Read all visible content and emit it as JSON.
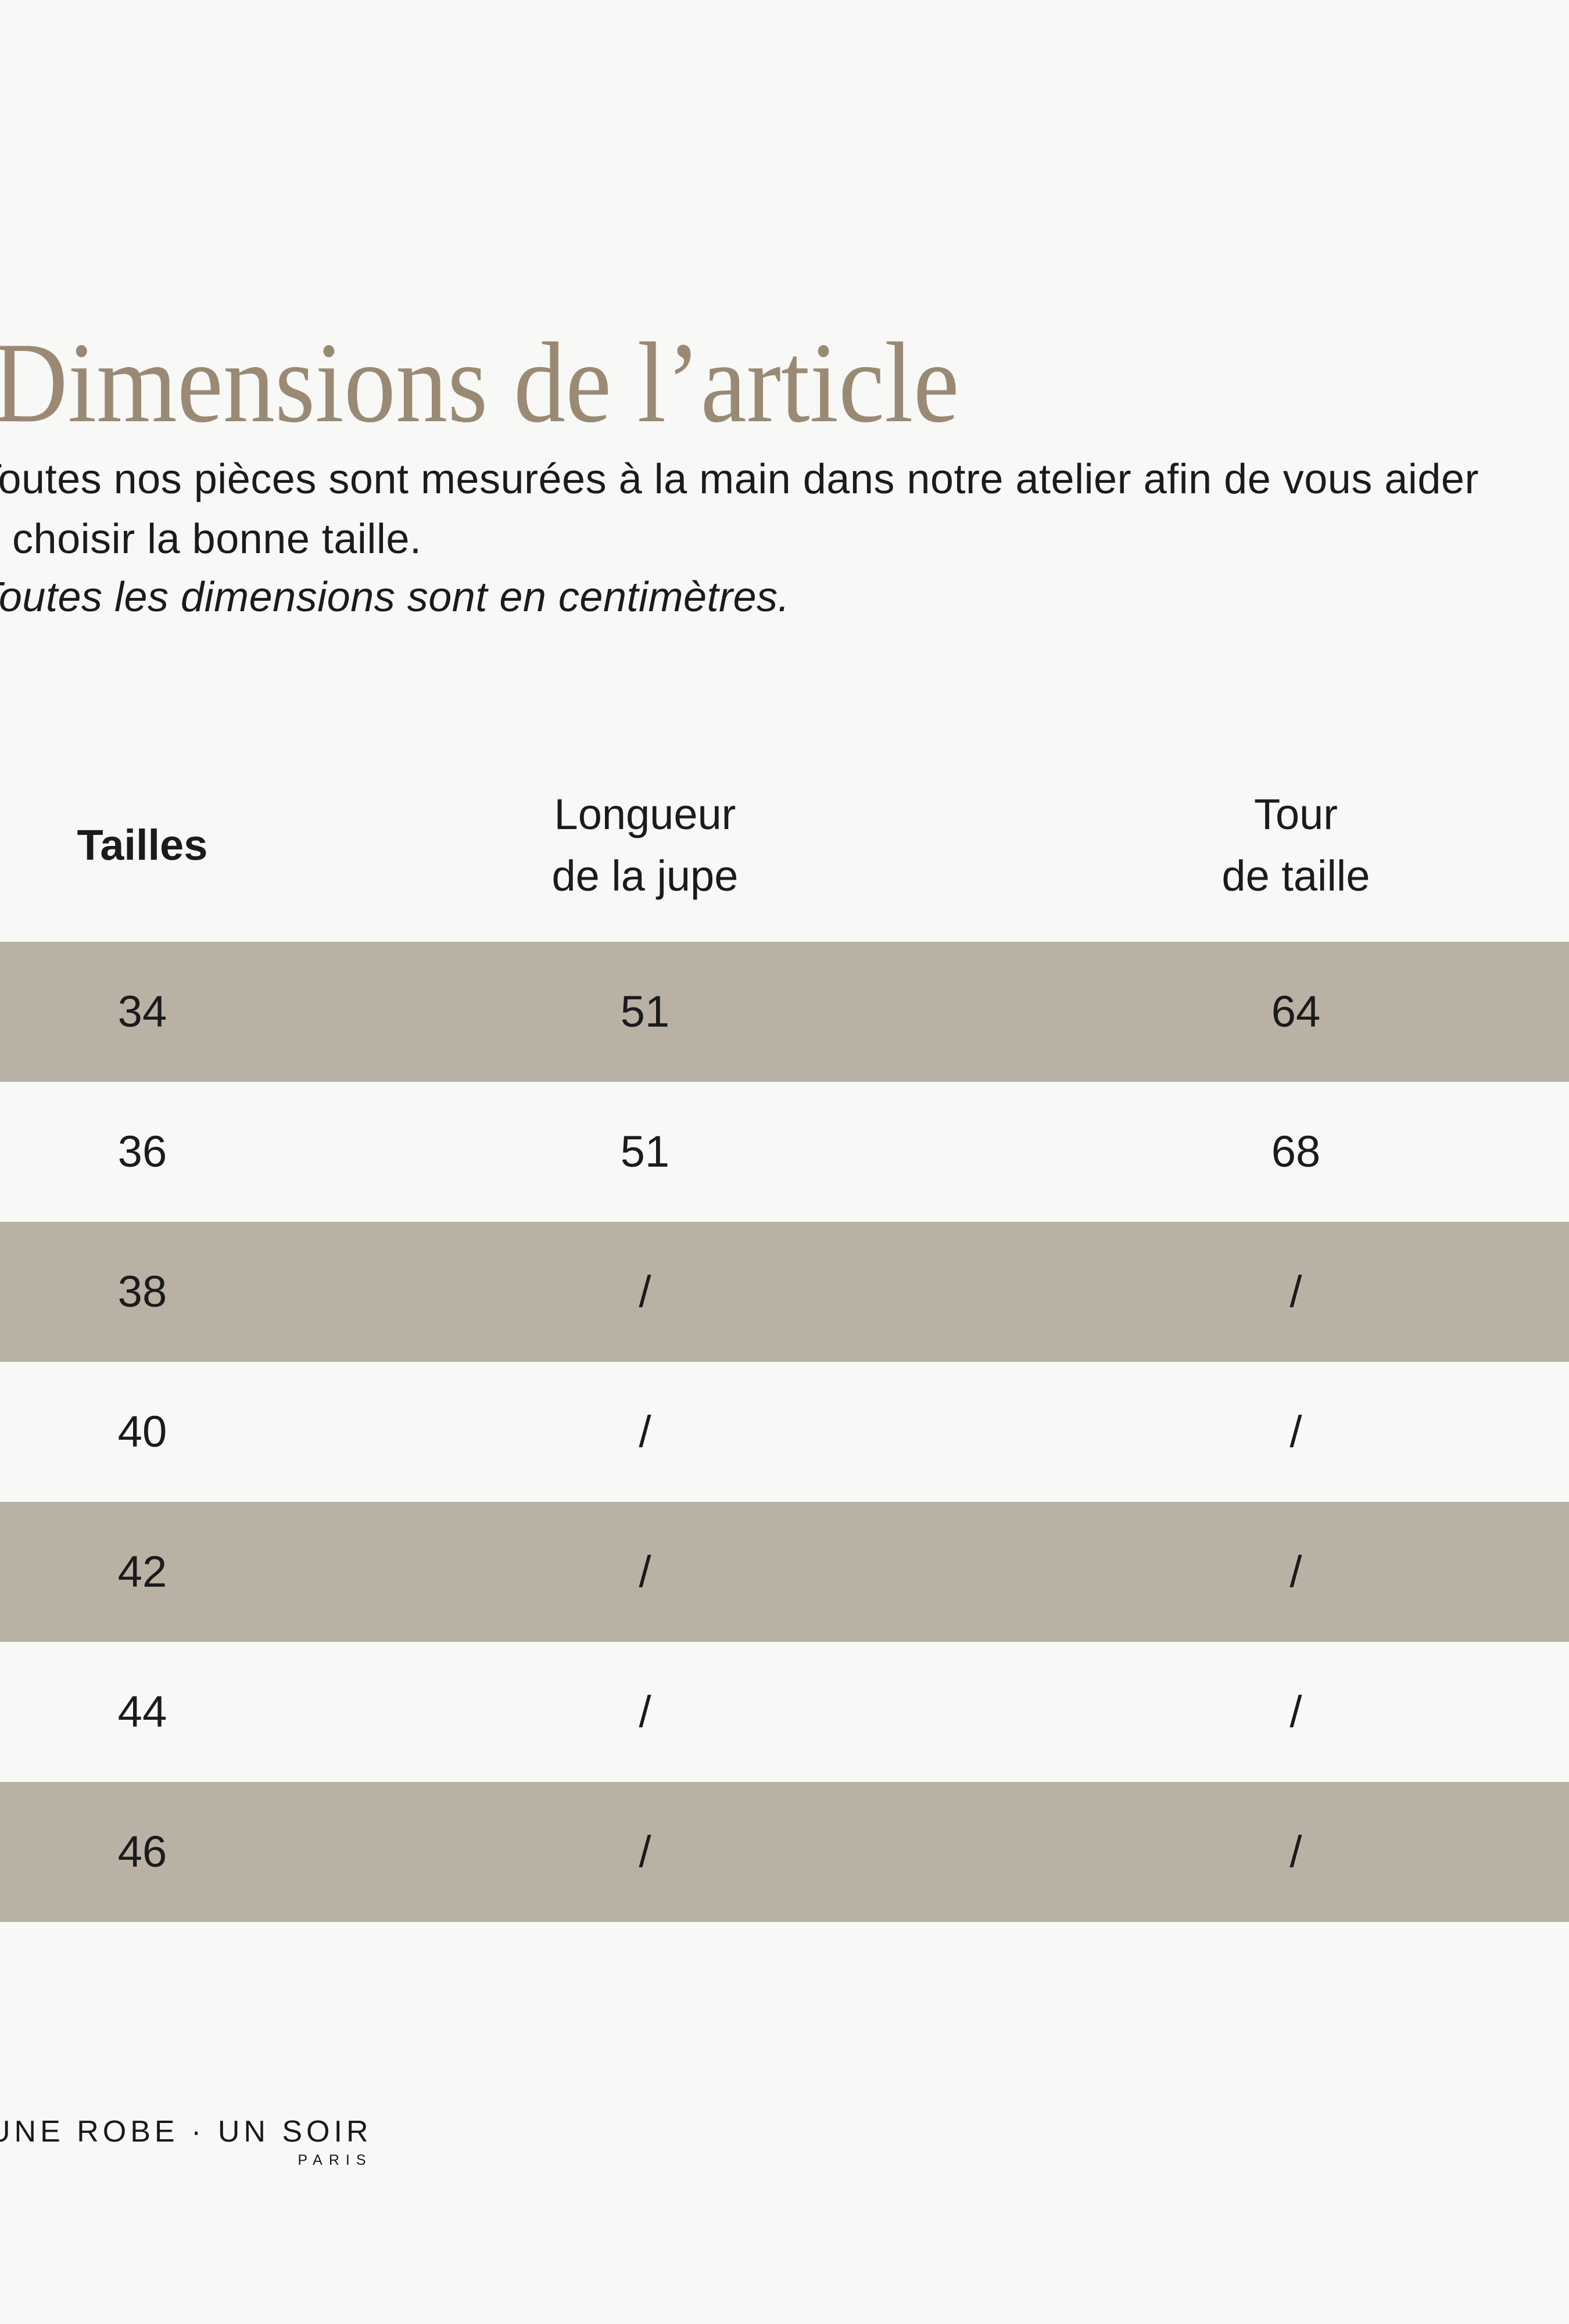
{
  "page": {
    "background": "#f8f8f7"
  },
  "header": {
    "title": "Dimensions de l’article",
    "title_color": "#9a8a74"
  },
  "intro": {
    "text": "Toutes nos pièces sont mesurées à la main dans notre atelier afin de vous aider\nà choisir la bonne taille.",
    "note": "Toutes les dimensions sont en centimètres."
  },
  "size_table": {
    "stripe_color": "#b9b2a4",
    "columns": [
      {
        "label": "Tailles"
      },
      {
        "label": "Longueur\nde la jupe"
      },
      {
        "label": "Tour\nde taille"
      }
    ],
    "rows": [
      {
        "taille": "34",
        "longueur": "51",
        "tour": "64"
      },
      {
        "taille": "36",
        "longueur": "51",
        "tour": "68"
      },
      {
        "taille": "38",
        "longueur": "/",
        "tour": "/"
      },
      {
        "taille": "40",
        "longueur": "/",
        "tour": "/"
      },
      {
        "taille": "42",
        "longueur": "/",
        "tour": "/"
      },
      {
        "taille": "44",
        "longueur": "/",
        "tour": "/"
      },
      {
        "taille": "46",
        "longueur": "/",
        "tour": "/"
      }
    ]
  },
  "footer": {
    "brand": "UNE ROBE · UN SOIR",
    "city": "PARIS"
  }
}
